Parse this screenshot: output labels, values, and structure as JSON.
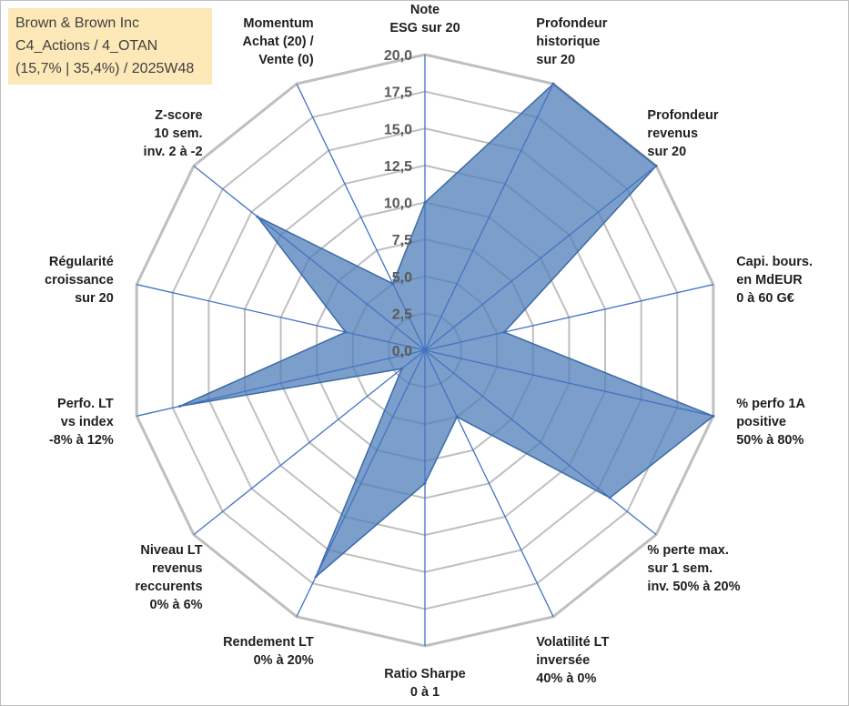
{
  "info_box": {
    "line1": "Brown & Brown Inc",
    "line2": "C4_Actions / 4_OTAN",
    "line3": "(15,7% | 35,4%) / 2025W48"
  },
  "chart_data": {
    "type": "radar",
    "title": "",
    "rmin": 0,
    "rmax": 20,
    "tick_values": [
      0,
      2.5,
      5,
      7.5,
      10,
      12.5,
      15,
      17.5,
      20
    ],
    "tick_labels": [
      "0,0",
      "2,5",
      "5,0",
      "7,5",
      "10,0",
      "12,5",
      "15,0",
      "17,5",
      "20,0"
    ],
    "categories": [
      [
        "Note",
        "ESG sur 20"
      ],
      [
        "Profondeur",
        "historique",
        "sur 20"
      ],
      [
        "Profondeur",
        "revenus",
        "sur 20"
      ],
      [
        "Capi. bours.",
        "en MdEUR",
        "0 à 60 G€"
      ],
      [
        "% perfo 1A",
        "positive",
        "50% à 80%"
      ],
      [
        "% perte max.",
        "sur 1 sem.",
        "inv. 50% à 20%"
      ],
      [
        "Volatilité LT",
        "inversée",
        "40% à 0%"
      ],
      [
        "Ratio Sharpe",
        "0 à 1"
      ],
      [
        "Rendement LT",
        "0% à 20%"
      ],
      [
        "Niveau LT",
        "revenus",
        "reccurents",
        "0% à 6%"
      ],
      [
        "Perfo. LT",
        "vs index",
        "-8% à 12%"
      ],
      [
        "Régularité",
        "croissance",
        "sur 20"
      ],
      [
        "Z-score",
        "10 sem.",
        "inv. 2 à -2"
      ],
      [
        "Momentum",
        "Achat (20) /",
        "Vente (0)"
      ]
    ],
    "series": [
      {
        "values": [
          10,
          20,
          20,
          5.5,
          20,
          16,
          5,
          9,
          17,
          2,
          17,
          5.5,
          14.5,
          5
        ]
      }
    ],
    "grid": true,
    "legend": "none",
    "colors": {
      "fill": "#4f7fb8",
      "fill_opacity": 0.75,
      "series_line": "#3a6aa8",
      "spoke": "#4472c4",
      "grid": "#bfbfbf"
    }
  }
}
